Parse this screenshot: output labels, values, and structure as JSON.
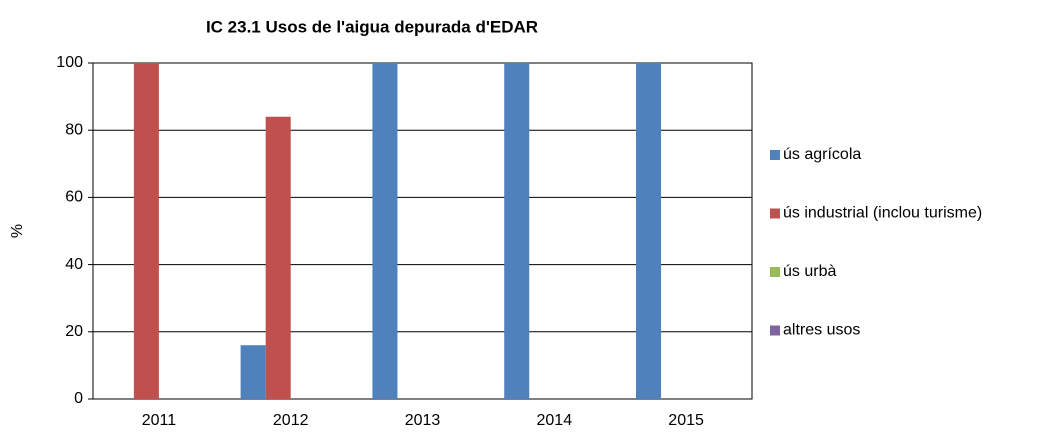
{
  "chart_data": {
    "type": "bar",
    "title": "IC 23.1 Usos de l'aigua depurada d'EDAR",
    "y_label": "%",
    "categories": [
      "2011",
      "2012",
      "2013",
      "2014",
      "2015"
    ],
    "series": [
      {
        "name": "ús agrícola",
        "color": "#4f81bd",
        "values": [
          0,
          16,
          100,
          100,
          100
        ]
      },
      {
        "name": "ús industrial (inclou turisme)",
        "color": "#c0504d",
        "values": [
          100,
          84,
          0,
          0,
          0
        ]
      },
      {
        "name": "ús urbà",
        "color": "#9bbb59",
        "values": [
          0,
          0,
          0,
          0,
          0
        ]
      },
      {
        "name": "altres usos",
        "color": "#8064a2",
        "values": [
          0,
          0,
          0,
          0,
          0
        ]
      }
    ],
    "ylim": [
      0,
      100
    ],
    "yticks": [
      0,
      20,
      40,
      60,
      80,
      100
    ],
    "grid": true,
    "legend": "right"
  }
}
